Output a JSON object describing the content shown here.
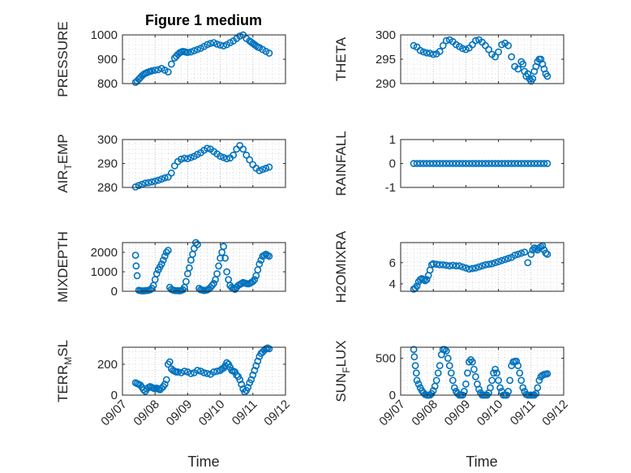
{
  "figure": {
    "title": "Figure 1 medium",
    "xlabel": "Time",
    "marker_color": "#0072BD",
    "x_ticks": [
      "09/07",
      "09/08",
      "09/09",
      "09/10",
      "09/11",
      "09/12"
    ]
  },
  "chart_data": [
    {
      "type": "scatter",
      "name": "pressure",
      "ylabel": "PRESSURE",
      "ylabel_sub": "",
      "ylim": [
        800,
        1000
      ],
      "yticks": [
        800,
        900,
        1000
      ],
      "grid": true,
      "x": [
        0.4,
        0.45,
        0.5,
        0.55,
        0.6,
        0.65,
        0.7,
        0.75,
        0.8,
        0.85,
        0.9,
        1.0,
        1.1,
        1.2,
        1.3,
        1.4,
        1.5,
        1.6,
        1.65,
        1.7,
        1.75,
        1.8,
        1.85,
        1.9,
        1.95,
        2.0,
        2.1,
        2.2,
        2.3,
        2.4,
        2.5,
        2.6,
        2.7,
        2.8,
        2.9,
        3.0,
        3.1,
        3.2,
        3.3,
        3.4,
        3.5,
        3.6,
        3.7,
        3.8,
        3.9,
        3.95,
        4.0,
        4.05,
        4.1,
        4.15,
        4.2,
        4.3,
        4.4,
        4.5
      ],
      "y": [
        805,
        810,
        818,
        825,
        832,
        838,
        842,
        845,
        848,
        850,
        852,
        855,
        857,
        862,
        855,
        848,
        880,
        905,
        912,
        920,
        926,
        930,
        932,
        931,
        929,
        928,
        930,
        935,
        940,
        945,
        952,
        960,
        965,
        968,
        962,
        958,
        955,
        960,
        968,
        975,
        985,
        995,
        1000,
        985,
        975,
        970,
        965,
        960,
        955,
        950,
        948,
        940,
        932,
        925
      ]
    },
    {
      "type": "scatter",
      "name": "theta",
      "ylabel": "THETA",
      "ylabel_sub": "",
      "ylim": [
        290,
        300
      ],
      "yticks": [
        290,
        295,
        300
      ],
      "grid": true,
      "x": [
        0.4,
        0.5,
        0.6,
        0.7,
        0.8,
        0.9,
        1.0,
        1.1,
        1.2,
        1.3,
        1.4,
        1.5,
        1.6,
        1.7,
        1.8,
        1.9,
        2.0,
        2.1,
        2.2,
        2.3,
        2.4,
        2.5,
        2.6,
        2.7,
        2.8,
        2.9,
        3.0,
        3.1,
        3.2,
        3.3,
        3.4,
        3.5,
        3.6,
        3.7,
        3.75,
        3.8,
        3.85,
        3.9,
        3.95,
        4.0,
        4.05,
        4.1,
        4.15,
        4.2,
        4.25,
        4.3,
        4.35,
        4.4,
        4.45,
        4.5
      ],
      "y": [
        297.8,
        297.5,
        296.8,
        296.5,
        296.3,
        296.2,
        296.0,
        296.1,
        296.6,
        297.8,
        298.8,
        299.0,
        298.6,
        298.0,
        297.6,
        297.2,
        297.0,
        297.3,
        298.0,
        298.8,
        299.0,
        298.5,
        297.8,
        297.0,
        296.0,
        295.5,
        296.5,
        298.0,
        298.3,
        297.8,
        295.5,
        293.5,
        293.0,
        294.5,
        294.0,
        292.5,
        291.5,
        292.0,
        291.0,
        290.5,
        291.0,
        292.5,
        293.5,
        294.5,
        295.0,
        295.0,
        294.0,
        293.0,
        292.0,
        291.5
      ]
    },
    {
      "type": "scatter",
      "name": "air_temp",
      "ylabel": "AIR",
      "ylabel_sub": "T",
      "ylabel_tail": "EMP",
      "ylim": [
        280,
        300
      ],
      "yticks": [
        280,
        290,
        300
      ],
      "grid": true,
      "x": [
        0.4,
        0.5,
        0.6,
        0.7,
        0.8,
        0.9,
        1.0,
        1.1,
        1.2,
        1.3,
        1.4,
        1.5,
        1.6,
        1.7,
        1.8,
        1.9,
        2.0,
        2.1,
        2.2,
        2.3,
        2.4,
        2.5,
        2.6,
        2.7,
        2.8,
        2.9,
        3.0,
        3.1,
        3.2,
        3.3,
        3.4,
        3.5,
        3.6,
        3.7,
        3.8,
        3.9,
        4.0,
        4.1,
        4.2,
        4.3,
        4.4,
        4.5
      ],
      "y": [
        280.2,
        280.8,
        281.3,
        281.8,
        282.0,
        282.3,
        282.6,
        283.0,
        283.5,
        284.0,
        284.3,
        286.0,
        289.0,
        290.8,
        291.8,
        292.2,
        292.0,
        292.5,
        293.0,
        293.8,
        294.5,
        295.5,
        296.3,
        296.0,
        295.0,
        294.0,
        293.0,
        292.5,
        292.0,
        292.3,
        293.5,
        296.0,
        297.5,
        296.0,
        293.5,
        291.5,
        289.5,
        288.0,
        287.0,
        287.5,
        288.0,
        288.5
      ]
    },
    {
      "type": "scatter",
      "name": "rainfall",
      "ylabel": "RAINFALL",
      "ylabel_sub": "",
      "ylim": [
        -1,
        1
      ],
      "yticks": [
        -1,
        0,
        1
      ],
      "grid": false,
      "x": [
        0.4,
        0.5,
        0.6,
        0.7,
        0.8,
        0.9,
        1.0,
        1.1,
        1.2,
        1.3,
        1.4,
        1.5,
        1.6,
        1.7,
        1.8,
        1.9,
        2.0,
        2.1,
        2.2,
        2.3,
        2.4,
        2.5,
        2.6,
        2.7,
        2.8,
        2.9,
        3.0,
        3.1,
        3.2,
        3.3,
        3.4,
        3.5,
        3.6,
        3.7,
        3.8,
        3.9,
        4.0,
        4.1,
        4.2,
        4.3,
        4.4,
        4.5
      ],
      "y": [
        0,
        0,
        0,
        0,
        0,
        0,
        0,
        0,
        0,
        0,
        0,
        0,
        0,
        0,
        0,
        0,
        0,
        0,
        0,
        0,
        0,
        0,
        0,
        0,
        0,
        0,
        0,
        0,
        0,
        0,
        0,
        0,
        0,
        0,
        0,
        0,
        0,
        0,
        0,
        0,
        0,
        0
      ]
    },
    {
      "type": "scatter",
      "name": "mixdepth",
      "ylabel": "MIXDEPTH",
      "ylabel_sub": "",
      "ylim": [
        0,
        2500
      ],
      "yticks": [
        0,
        1000,
        2000
      ],
      "grid": true,
      "x": [
        0.4,
        0.42,
        0.45,
        0.5,
        0.55,
        0.6,
        0.65,
        0.7,
        0.75,
        0.8,
        0.85,
        0.9,
        0.95,
        1.0,
        1.05,
        1.1,
        1.15,
        1.2,
        1.25,
        1.3,
        1.35,
        1.4,
        1.45,
        1.5,
        1.55,
        1.6,
        1.65,
        1.7,
        1.75,
        1.8,
        1.85,
        1.9,
        1.95,
        2.0,
        2.05,
        2.1,
        2.15,
        2.2,
        2.25,
        2.3,
        2.35,
        2.4,
        2.45,
        2.5,
        2.55,
        2.6,
        2.65,
        2.7,
        2.75,
        2.8,
        2.85,
        2.9,
        2.95,
        3.0,
        3.05,
        3.1,
        3.15,
        3.2,
        3.25,
        3.3,
        3.35,
        3.4,
        3.45,
        3.5,
        3.55,
        3.6,
        3.65,
        3.7,
        3.75,
        3.8,
        3.85,
        3.9,
        3.95,
        4.0,
        4.05,
        4.1,
        4.15,
        4.2,
        4.25,
        4.3,
        4.35,
        4.4,
        4.45,
        4.5
      ],
      "y": [
        1850,
        1300,
        800,
        50,
        30,
        20,
        20,
        30,
        40,
        50,
        80,
        150,
        300,
        600,
        900,
        1100,
        1250,
        1400,
        1600,
        1800,
        2000,
        2100,
        200,
        100,
        60,
        40,
        30,
        30,
        20,
        40,
        80,
        200,
        500,
        900,
        1200,
        1600,
        1900,
        2200,
        2500,
        2400,
        150,
        80,
        60,
        40,
        50,
        70,
        120,
        200,
        300,
        400,
        600,
        900,
        1300,
        1700,
        2000,
        2300,
        1700,
        1000,
        600,
        300,
        200,
        150,
        100,
        200,
        300,
        350,
        400,
        450,
        420,
        400,
        380,
        400,
        450,
        500,
        600,
        800,
        1100,
        1400,
        1600,
        1800,
        1850,
        1900,
        1850,
        1800
      ]
    },
    {
      "type": "scatter",
      "name": "h2omixra",
      "ylabel": "H2OMIXRA",
      "ylabel_sub": "",
      "ylim": [
        3.3,
        7.9
      ],
      "yticks": [
        4,
        6
      ],
      "grid": true,
      "x": [
        0.4,
        0.45,
        0.5,
        0.55,
        0.6,
        0.65,
        0.7,
        0.75,
        0.8,
        0.85,
        0.9,
        0.95,
        1.0,
        1.1,
        1.2,
        1.3,
        1.4,
        1.5,
        1.6,
        1.7,
        1.8,
        1.9,
        2.0,
        2.1,
        2.2,
        2.3,
        2.4,
        2.5,
        2.6,
        2.7,
        2.8,
        2.9,
        3.0,
        3.1,
        3.2,
        3.3,
        3.4,
        3.5,
        3.6,
        3.7,
        3.8,
        3.9,
        4.0,
        4.05,
        4.1,
        4.15,
        4.2,
        4.25,
        4.3,
        4.35,
        4.4,
        4.45,
        4.5
      ],
      "y": [
        3.5,
        3.6,
        3.8,
        4.2,
        4.4,
        4.5,
        4.4,
        4.3,
        4.4,
        4.8,
        5.3,
        5.8,
        5.9,
        5.85,
        5.8,
        5.8,
        5.75,
        5.7,
        5.75,
        5.7,
        5.7,
        5.6,
        5.5,
        5.4,
        5.45,
        5.5,
        5.6,
        5.7,
        5.8,
        5.85,
        5.9,
        6.0,
        6.1,
        6.2,
        6.3,
        6.4,
        6.5,
        6.7,
        6.8,
        6.9,
        7.0,
        6.0,
        6.8,
        7.2,
        7.4,
        7.3,
        7.2,
        7.4,
        7.5,
        7.6,
        7.2,
        6.9,
        6.8
      ]
    },
    {
      "type": "scatter",
      "name": "terr_msl",
      "ylabel": "TERR",
      "ylabel_sub": "M",
      "ylabel_tail": "SL",
      "ylim": [
        0,
        310
      ],
      "yticks": [
        0,
        200
      ],
      "grid": true,
      "x": [
        0.4,
        0.45,
        0.5,
        0.55,
        0.6,
        0.65,
        0.7,
        0.75,
        0.8,
        0.85,
        0.9,
        0.95,
        1.0,
        1.05,
        1.1,
        1.15,
        1.2,
        1.25,
        1.3,
        1.35,
        1.4,
        1.45,
        1.5,
        1.55,
        1.6,
        1.65,
        1.7,
        1.8,
        1.9,
        2.0,
        2.1,
        2.2,
        2.3,
        2.4,
        2.5,
        2.6,
        2.7,
        2.8,
        2.9,
        3.0,
        3.05,
        3.1,
        3.15,
        3.2,
        3.25,
        3.3,
        3.35,
        3.4,
        3.45,
        3.5,
        3.55,
        3.6,
        3.65,
        3.7,
        3.75,
        3.8,
        3.85,
        3.9,
        3.95,
        4.0,
        4.05,
        4.1,
        4.15,
        4.2,
        4.25,
        4.3,
        4.35,
        4.4,
        4.45,
        4.5
      ],
      "y": [
        80,
        75,
        70,
        65,
        50,
        35,
        25,
        40,
        50,
        55,
        50,
        45,
        40,
        45,
        40,
        35,
        45,
        55,
        70,
        100,
        200,
        215,
        170,
        160,
        155,
        150,
        150,
        145,
        155,
        150,
        140,
        145,
        160,
        155,
        145,
        140,
        135,
        150,
        155,
        160,
        170,
        175,
        190,
        210,
        200,
        180,
        160,
        155,
        150,
        130,
        120,
        100,
        70,
        40,
        20,
        30,
        50,
        80,
        100,
        130,
        160,
        190,
        220,
        250,
        270,
        280,
        290,
        300,
        305,
        300
      ]
    },
    {
      "type": "scatter",
      "name": "sun_flux",
      "ylabel": "SUN",
      "ylabel_sub": "F",
      "ylabel_tail": "LUX",
      "ylim": [
        0,
        650
      ],
      "yticks": [
        0,
        500
      ],
      "grid": true,
      "x": [
        0.4,
        0.42,
        0.45,
        0.48,
        0.5,
        0.55,
        0.6,
        0.65,
        0.7,
        0.75,
        0.8,
        0.85,
        0.9,
        0.95,
        1.0,
        1.05,
        1.1,
        1.15,
        1.2,
        1.25,
        1.3,
        1.35,
        1.4,
        1.45,
        1.5,
        1.55,
        1.6,
        1.65,
        1.7,
        1.75,
        1.8,
        1.85,
        1.9,
        1.95,
        2.0,
        2.05,
        2.1,
        2.15,
        2.2,
        2.25,
        2.3,
        2.35,
        2.4,
        2.45,
        2.5,
        2.55,
        2.6,
        2.65,
        2.7,
        2.75,
        2.8,
        2.85,
        2.9,
        2.95,
        3.0,
        3.05,
        3.1,
        3.15,
        3.2,
        3.25,
        3.3,
        3.35,
        3.4,
        3.45,
        3.5,
        3.55,
        3.6,
        3.65,
        3.7,
        3.75,
        3.8,
        3.85,
        3.9,
        3.95,
        4.0,
        4.05,
        4.1,
        4.15,
        4.2,
        4.25,
        4.3,
        4.35,
        4.4,
        4.45,
        4.5
      ],
      "y": [
        620,
        520,
        400,
        300,
        200,
        150,
        100,
        60,
        30,
        10,
        0,
        0,
        0,
        20,
        60,
        120,
        200,
        300,
        400,
        550,
        620,
        620,
        600,
        500,
        400,
        300,
        200,
        100,
        50,
        20,
        0,
        0,
        0,
        50,
        150,
        300,
        450,
        480,
        450,
        350,
        250,
        150,
        80,
        30,
        0,
        0,
        0,
        0,
        30,
        100,
        200,
        300,
        350,
        300,
        200,
        100,
        50,
        0,
        0,
        0,
        50,
        200,
        400,
        450,
        460,
        460,
        400,
        300,
        200,
        100,
        50,
        10,
        0,
        0,
        0,
        0,
        0,
        20,
        100,
        200,
        250,
        270,
        280,
        285,
        290
      ]
    }
  ]
}
